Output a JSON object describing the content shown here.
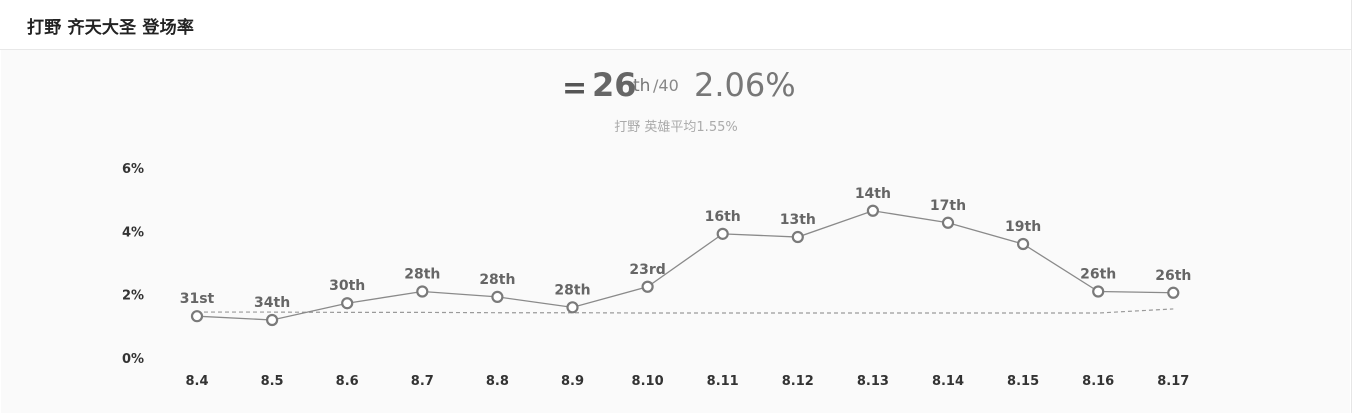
{
  "header": {
    "title": "打野 齐天大圣 登场率"
  },
  "summary": {
    "rank_symbol": "=",
    "rank": "26",
    "rank_suffix": "th",
    "rank_total": "/40",
    "rate": "2.06%",
    "average_text": "打野 英雄平均1.55%"
  },
  "colors": {
    "line": "#8a8a8a",
    "point_fill": "#ffffff",
    "point_stroke": "#7a7a7a",
    "average_line": "#9a9a9a",
    "background": "#fafafa"
  },
  "chart_data": {
    "type": "line",
    "categories": [
      "8.4",
      "8.5",
      "8.6",
      "8.7",
      "8.8",
      "8.9",
      "8.10",
      "8.11",
      "8.12",
      "8.13",
      "8.14",
      "8.15",
      "8.16",
      "8.17"
    ],
    "series": [
      {
        "values": [
          1.32,
          1.2,
          1.73,
          2.1,
          1.93,
          1.6,
          2.25,
          3.92,
          3.82,
          4.65,
          4.27,
          3.6,
          2.1,
          2.06
        ],
        "labels": [
          "31st",
          "34th",
          "30th",
          "28th",
          "28th",
          "28th",
          "23rd",
          "16th",
          "13th",
          "14th",
          "17th",
          "19th",
          "26th",
          "26th"
        ]
      },
      {
        "values": [
          1.45,
          1.45,
          1.44,
          1.44,
          1.43,
          1.43,
          1.42,
          1.42,
          1.42,
          1.42,
          1.42,
          1.42,
          1.42,
          1.55
        ],
        "dashed": true
      }
    ],
    "yticks": [
      "0%",
      "2%",
      "4%",
      "6%"
    ],
    "ytick_values": [
      0,
      2,
      4,
      6
    ],
    "ylim": [
      0,
      6
    ],
    "grid": false,
    "legend": "none"
  }
}
